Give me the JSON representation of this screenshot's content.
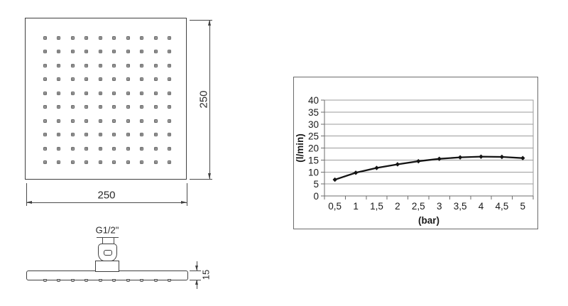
{
  "page": {
    "background": "#ffffff"
  },
  "drawing": {
    "face_view": {
      "width_label": "250",
      "height_label": "250",
      "nozzle_rows": 10,
      "nozzle_cols": 10
    },
    "side_view": {
      "thread_label": "G1/2\"",
      "thickness_label": "15",
      "nozzle_count": 10
    }
  },
  "chart_data": {
    "type": "line",
    "title": "",
    "xlabel": "(bar)",
    "ylabel": "(l/min)",
    "x": [
      0.5,
      1,
      1.5,
      2,
      2.5,
      3,
      3.5,
      4,
      4.5,
      5
    ],
    "x_tick_labels": [
      "0,5",
      "1",
      "1,5",
      "2",
      "2,5",
      "3",
      "3,5",
      "4",
      "4,5",
      "5"
    ],
    "values": [
      6.8,
      9.7,
      11.7,
      13.2,
      14.5,
      15.5,
      16.1,
      16.4,
      16.3,
      15.8
    ],
    "y_ticks": [
      0,
      5,
      10,
      15,
      20,
      25,
      30,
      35,
      40
    ],
    "ylim": [
      0,
      40
    ],
    "grid": true,
    "legend": false,
    "line_color": "#141414",
    "grid_color": "#9b9b9b",
    "axis_color": "#6e6e6e",
    "text_color": "#1a1a1a"
  }
}
